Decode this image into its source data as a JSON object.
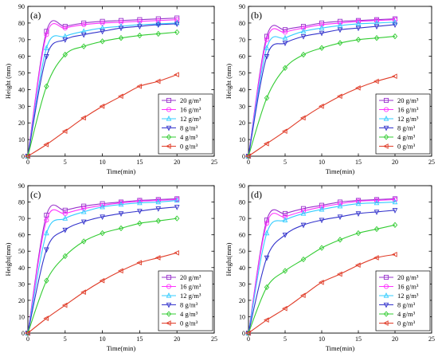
{
  "chart_data": [
    {
      "type": "line",
      "panel_label": "(a)",
      "xlabel": "Time(min)",
      "ylabel": "Height (mm)",
      "xlim": [
        0,
        25
      ],
      "ylim": [
        0,
        90
      ],
      "x_ticks": [
        "0",
        "5",
        "10",
        "15",
        "20",
        "25"
      ],
      "y_ticks": [
        "0",
        "10",
        "20",
        "30",
        "40",
        "50",
        "60",
        "70",
        "80",
        "90"
      ],
      "legend_position": "bottom-right",
      "x": [
        0,
        2.5,
        5,
        7.5,
        10,
        12.5,
        15,
        17.5,
        20
      ],
      "series": [
        {
          "name": "20 g/m³",
          "color": "#9933cc",
          "marker": "square",
          "values": [
            0,
            75,
            78,
            80,
            81,
            81.5,
            82,
            82.5,
            83
          ]
        },
        {
          "name": "16 g/m³",
          "color": "#ff33ff",
          "marker": "circle",
          "values": [
            0,
            73,
            77,
            79,
            80,
            80.5,
            81,
            81.5,
            82
          ]
        },
        {
          "name": "12 g/m³",
          "color": "#33ccff",
          "marker": "triangle-up",
          "values": [
            0,
            65,
            72,
            75,
            77,
            78,
            79,
            79.5,
            80
          ]
        },
        {
          "name": "8  g/m³",
          "color": "#3333cc",
          "marker": "triangle-down",
          "values": [
            0,
            60,
            70,
            73,
            75,
            77,
            78,
            79,
            79.5
          ]
        },
        {
          "name": "4  g/m³",
          "color": "#33cc33",
          "marker": "diamond",
          "values": [
            0,
            42,
            61,
            66,
            69,
            71,
            72.5,
            73.5,
            74.5
          ]
        },
        {
          "name": "0  g/m³",
          "color": "#e03c28",
          "marker": "triangle-left",
          "values": [
            0,
            7,
            15,
            23,
            30,
            36,
            42,
            45,
            49
          ]
        }
      ]
    },
    {
      "type": "line",
      "panel_label": "(b)",
      "xlabel": "Time(min)",
      "ylabel": "Height (mm)",
      "xlim": [
        0,
        25
      ],
      "ylim": [
        0,
        90
      ],
      "x_ticks": [
        "0",
        "5",
        "10",
        "15",
        "20",
        "25"
      ],
      "y_ticks": [
        "0",
        "10",
        "20",
        "30",
        "40",
        "50",
        "60",
        "70",
        "80",
        "90"
      ],
      "legend_position": "bottom-right",
      "x": [
        0,
        2.5,
        5,
        7.5,
        10,
        12.5,
        15,
        17.5,
        20
      ],
      "series": [
        {
          "name": "20 g/m³",
          "color": "#9933cc",
          "marker": "square",
          "values": [
            0,
            72,
            76,
            78,
            80,
            81,
            81.5,
            82,
            82.5
          ]
        },
        {
          "name": "16 g/m³",
          "color": "#ff33ff",
          "marker": "circle",
          "values": [
            0,
            70,
            74.5,
            77,
            79,
            80,
            81,
            81.5,
            82
          ]
        },
        {
          "name": "12 g/m³",
          "color": "#33ccff",
          "marker": "triangle-up",
          "values": [
            0,
            65,
            71,
            75,
            77,
            78.5,
            79.5,
            80,
            80.5
          ]
        },
        {
          "name": "8  g/m³",
          "color": "#3333cc",
          "marker": "triangle-down",
          "values": [
            0,
            60,
            68,
            72,
            74,
            76,
            77,
            78,
            79
          ]
        },
        {
          "name": "4  g/m³",
          "color": "#33cc33",
          "marker": "diamond",
          "values": [
            0,
            35,
            53,
            61,
            65,
            68,
            70,
            71,
            72
          ]
        },
        {
          "name": "0  g/m³",
          "color": "#e03c28",
          "marker": "triangle-left",
          "values": [
            0,
            7.5,
            15,
            23,
            30,
            36,
            41,
            45,
            48
          ]
        }
      ]
    },
    {
      "type": "line",
      "panel_label": "(c)",
      "xlabel": "Time(min)",
      "ylabel": "Height(mm)",
      "xlim": [
        0,
        25
      ],
      "ylim": [
        0,
        90
      ],
      "x_ticks": [
        "0",
        "5",
        "10",
        "15",
        "20",
        "25"
      ],
      "y_ticks": [
        "0",
        "10",
        "20",
        "30",
        "40",
        "50",
        "60",
        "70",
        "80",
        "90"
      ],
      "legend_position": "bottom-right",
      "x": [
        0,
        2.5,
        5,
        7.5,
        10,
        12.5,
        15,
        17.5,
        20
      ],
      "series": [
        {
          "name": "20 g/m³",
          "color": "#9933cc",
          "marker": "square",
          "values": [
            0,
            72,
            75,
            77.5,
            79,
            80,
            81,
            81.5,
            82
          ]
        },
        {
          "name": "16 g/m³",
          "color": "#ff33ff",
          "marker": "circle",
          "values": [
            0,
            69,
            73,
            76,
            78,
            79.5,
            80.5,
            81,
            81.5
          ]
        },
        {
          "name": "12 g/m³",
          "color": "#33ccff",
          "marker": "triangle-up",
          "values": [
            0,
            61,
            70,
            74,
            77,
            78.5,
            79.5,
            80,
            81
          ]
        },
        {
          "name": "8  g/m³",
          "color": "#3333cc",
          "marker": "triangle-down",
          "values": [
            0,
            51,
            63,
            68,
            71,
            73,
            74.5,
            76,
            77
          ]
        },
        {
          "name": "4  g/m³",
          "color": "#33cc33",
          "marker": "diamond",
          "values": [
            0,
            32,
            47,
            56,
            61,
            64,
            67,
            68.5,
            70
          ]
        },
        {
          "name": "0  g/m³",
          "color": "#e03c28",
          "marker": "triangle-left",
          "values": [
            0,
            9,
            17,
            25,
            32,
            38,
            43,
            46,
            49
          ]
        }
      ]
    },
    {
      "type": "line",
      "panel_label": "(d)",
      "xlabel": "Time(min)",
      "ylabel": "Height(mm)",
      "xlim": [
        0,
        25
      ],
      "ylim": [
        0,
        90
      ],
      "x_ticks": [
        "0",
        "5",
        "10",
        "15",
        "20",
        "25"
      ],
      "y_ticks": [
        "0",
        "10",
        "20",
        "30",
        "40",
        "50",
        "60",
        "70",
        "80",
        "90"
      ],
      "legend_position": "bottom-right",
      "x": [
        0,
        2.5,
        5,
        7.5,
        10,
        12.5,
        15,
        17.5,
        20
      ],
      "series": [
        {
          "name": "20 g/m³",
          "color": "#9933cc",
          "marker": "square",
          "values": [
            0,
            69,
            73,
            76,
            78,
            80,
            81,
            81.5,
            82
          ]
        },
        {
          "name": "16 g/m³",
          "color": "#ff33ff",
          "marker": "circle",
          "values": [
            0,
            67,
            71,
            74.5,
            77,
            79,
            80.5,
            81,
            81.5
          ]
        },
        {
          "name": "12 g/m³",
          "color": "#33ccff",
          "marker": "triangle-up",
          "values": [
            0,
            61,
            69,
            73,
            75.5,
            77.5,
            79,
            79.5,
            80
          ]
        },
        {
          "name": "8  g/m³",
          "color": "#3333cc",
          "marker": "triangle-down",
          "values": [
            0,
            46,
            60,
            66,
            69,
            71,
            73,
            74,
            75
          ]
        },
        {
          "name": "4  g/m³",
          "color": "#33cc33",
          "marker": "diamond",
          "values": [
            0,
            28,
            38,
            45,
            52,
            57,
            61,
            63.5,
            66
          ]
        },
        {
          "name": "0  g/m³",
          "color": "#e03c28",
          "marker": "triangle-left",
          "values": [
            0,
            8,
            15,
            23,
            31,
            36,
            41.5,
            46,
            48
          ]
        }
      ]
    }
  ]
}
